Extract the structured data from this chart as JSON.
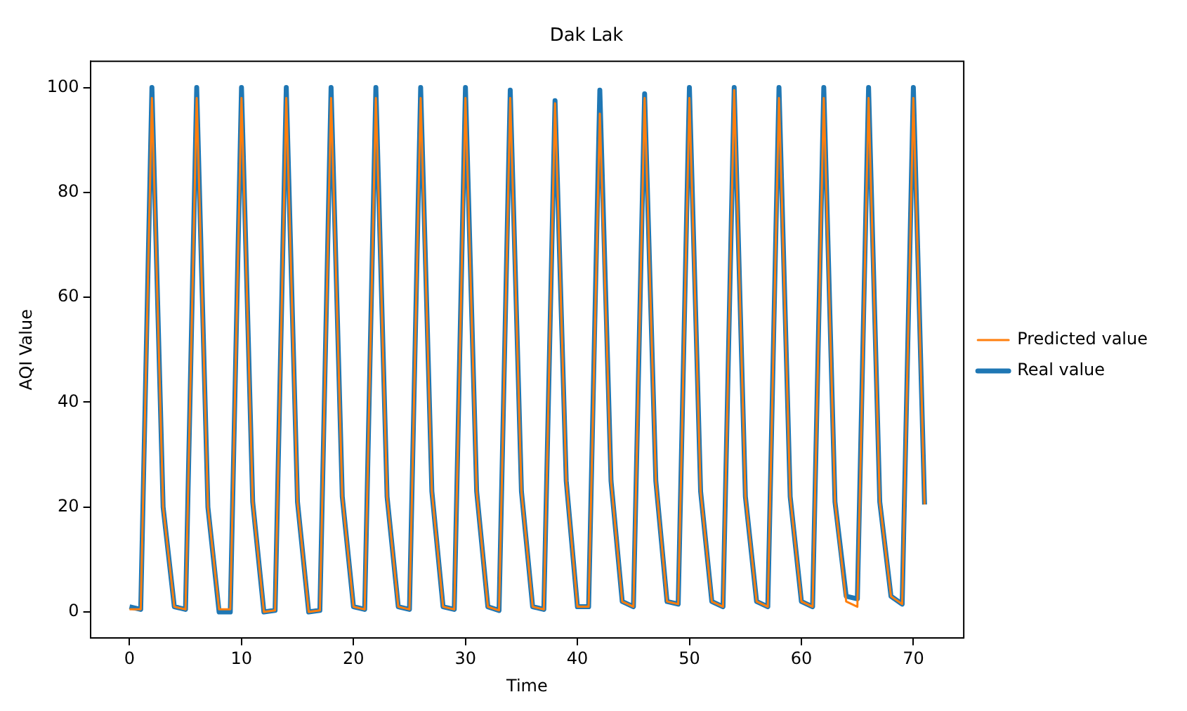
{
  "chart_data": {
    "type": "line",
    "title": "Dak Lak",
    "xlabel": "Time",
    "ylabel": "AQI Value",
    "x": [
      0,
      1,
      2,
      3,
      4,
      5,
      6,
      7,
      8,
      9,
      10,
      11,
      12,
      13,
      14,
      15,
      16,
      17,
      18,
      19,
      20,
      21,
      22,
      23,
      24,
      25,
      26,
      27,
      28,
      29,
      30,
      31,
      32,
      33,
      34,
      35,
      36,
      37,
      38,
      39,
      40,
      41,
      42,
      43,
      44,
      45,
      46,
      47,
      48,
      49,
      50,
      51,
      52,
      53,
      54,
      55,
      56,
      57,
      58,
      59,
      60,
      61,
      62,
      63,
      64,
      65,
      66,
      67,
      68,
      69,
      70,
      71
    ],
    "series": [
      {
        "name": "Real value",
        "color": "#1f77b4",
        "values": [
          1,
          0.5,
          100,
          20,
          1,
          0.5,
          100,
          20,
          0,
          0,
          100,
          21,
          0,
          0.3,
          100,
          21,
          0,
          0.3,
          100,
          22,
          1,
          0.5,
          100,
          22,
          1,
          0.5,
          100,
          23,
          1,
          0.5,
          100,
          23,
          1,
          0.3,
          99.5,
          23,
          1,
          0.5,
          97.5,
          25,
          1,
          1,
          99.5,
          25,
          2,
          1,
          98.8,
          25,
          2,
          1.5,
          100,
          23,
          2,
          1,
          100,
          22,
          2,
          1,
          100,
          22,
          2,
          1,
          100,
          21,
          3,
          2.5,
          100,
          21,
          3,
          1.5,
          100,
          20.5
        ]
      },
      {
        "name": "Predicted value",
        "color": "#ff7f0e",
        "values": [
          0.5,
          0.5,
          98,
          20,
          1,
          0.5,
          98,
          20,
          0.5,
          0.5,
          98,
          21,
          0,
          0.3,
          98,
          21,
          0,
          0.3,
          98,
          22,
          1,
          0.5,
          98,
          22,
          1,
          0.5,
          98,
          23,
          1,
          0.5,
          98,
          23,
          1,
          0.3,
          98,
          23,
          1,
          0.5,
          97,
          25,
          1,
          1,
          95,
          25,
          2,
          1,
          98,
          25,
          2,
          1.5,
          98,
          23,
          2,
          1,
          99.5,
          22,
          2,
          1,
          98,
          22,
          2,
          1,
          98,
          21,
          2,
          1,
          98,
          21,
          3,
          1.5,
          98,
          20.5
        ]
      }
    ],
    "xlim": [
      -3.5,
      74.5
    ],
    "xticks": [
      0,
      10,
      20,
      30,
      40,
      50,
      60,
      70
    ],
    "ylim": [
      -5,
      105
    ],
    "yticks": [
      0,
      20,
      40,
      60,
      80,
      100
    ],
    "grid": false,
    "legend": "right",
    "marker": "none",
    "line_style": "solid"
  }
}
